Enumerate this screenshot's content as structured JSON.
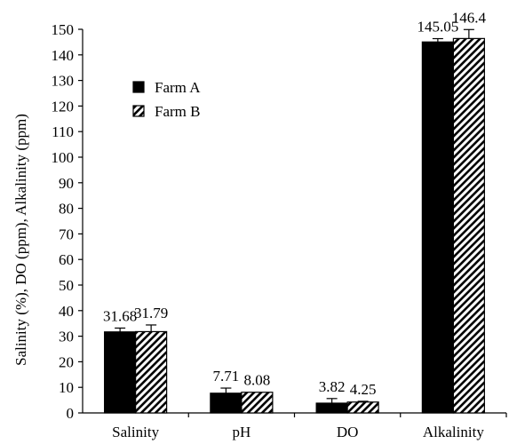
{
  "chart_data": {
    "type": "bar",
    "title": "",
    "xlabel": "",
    "ylabel": "Salinity (%), DO (ppm), Alkalinity (ppm)",
    "ylim": [
      0,
      150
    ],
    "yticks": [
      0,
      10,
      20,
      30,
      40,
      50,
      60,
      70,
      80,
      90,
      100,
      110,
      120,
      130,
      140,
      150
    ],
    "categories": [
      "Salinity",
      "pH",
      "DO",
      "Alkalinity"
    ],
    "series": [
      {
        "name": "Farm A",
        "pattern": "solid",
        "color": "#000000",
        "values": [
          31.68,
          7.71,
          3.82,
          145.05
        ],
        "labels": [
          "31.68",
          "7.71",
          "3.82",
          "145.05"
        ],
        "error": [
          1.5,
          2.0,
          1.8,
          1.3
        ]
      },
      {
        "name": "Farm B",
        "pattern": "diagonal-hatch",
        "color": "#000000",
        "values": [
          31.79,
          8.08,
          4.25,
          146.4
        ],
        "labels": [
          "31.79",
          "8.08",
          "4.25",
          "146.4"
        ],
        "error": [
          2.6,
          0.0,
          0.3,
          3.5
        ]
      }
    ],
    "legend": {
      "position": "upper-left-inside",
      "entries": [
        "Farm A",
        "Farm B"
      ]
    },
    "grid": false
  }
}
